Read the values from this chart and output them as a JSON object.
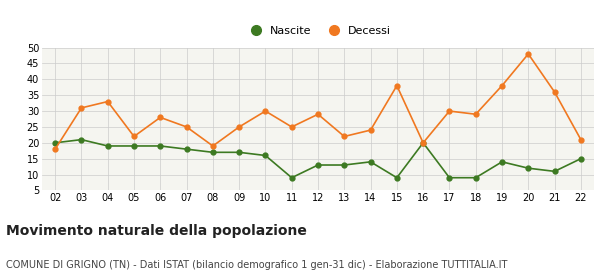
{
  "years": [
    "02",
    "03",
    "04",
    "05",
    "06",
    "07",
    "08",
    "09",
    "10",
    "11",
    "12",
    "13",
    "14",
    "15",
    "16",
    "17",
    "18",
    "19",
    "20",
    "21",
    "22"
  ],
  "nascite": [
    20,
    21,
    19,
    19,
    19,
    18,
    17,
    17,
    16,
    9,
    13,
    13,
    14,
    9,
    20,
    9,
    9,
    14,
    12,
    11,
    15
  ],
  "decessi": [
    18,
    31,
    33,
    22,
    28,
    25,
    19,
    25,
    30,
    25,
    29,
    22,
    24,
    38,
    20,
    30,
    29,
    38,
    48,
    36,
    21
  ],
  "nascite_color": "#3d7a22",
  "decessi_color": "#f07820",
  "background_color": "#ffffff",
  "plot_bg_color": "#f5f5f0",
  "grid_color": "#cccccc",
  "ylim": [
    5,
    50
  ],
  "yticks": [
    5,
    10,
    15,
    20,
    25,
    30,
    35,
    40,
    45,
    50
  ],
  "title": "Movimento naturale della popolazione",
  "subtitle": "COMUNE DI GRIGNO (TN) - Dati ISTAT (bilancio demografico 1 gen-31 dic) - Elaborazione TUTTITALIA.IT",
  "legend_nascite": "Nascite",
  "legend_decessi": "Decessi",
  "title_fontsize": 10,
  "subtitle_fontsize": 7,
  "axis_fontsize": 7,
  "legend_fontsize": 8
}
